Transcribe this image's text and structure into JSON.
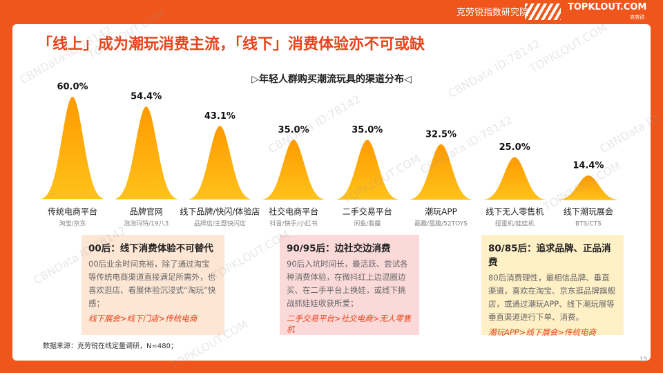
{
  "header": {
    "brand": "克劳锐指数研究院",
    "logo": "TOPKLOUT.COM",
    "logo_cn": "克劳锐",
    "title": "「线上」成为潮玩消费主流，「线下」消费体验亦不可或缺"
  },
  "chart_data": {
    "type": "bar",
    "title": "▷年轻人群购买潮流玩具的渠道分布◁",
    "categories": [
      "传统电商平台",
      "品牌官网",
      "线下品牌/快闪/体验店",
      "社交电商平台",
      "二手交易平台",
      "潮玩APP",
      "线下无人零售机",
      "线下潮玩展会"
    ],
    "sublabels": [
      "淘宝/京东",
      "泡泡玛特/19八3",
      "品牌店/主题快闪店",
      "抖音/快手/小红书",
      "闲鱼/看魔",
      "葩趣/蛋趣/52TOYS",
      "扭蛋机/娃娃机",
      "BTS/CTS"
    ],
    "values": [
      60.0,
      54.4,
      43.1,
      35.0,
      35.0,
      32.5,
      25.0,
      14.4
    ],
    "value_labels": [
      "60.0%",
      "54.4%",
      "43.1%",
      "35.0%",
      "35.0%",
      "32.5%",
      "25.0%",
      "14.4%"
    ],
    "ylim": [
      0,
      60
    ],
    "color_top": "#ff9a00",
    "color_bottom": "#ffc21a"
  },
  "cards": [
    {
      "title": "00后：线下消费体验不可替代",
      "body": "00后业余时间充裕，除了通过淘宝等传统电商渠道直接满足所需外，也喜欢逛店、看展体验沉浸式“淘玩”快感；",
      "path": "线下展会>线下门店>传统电商",
      "color": "#fde6d4"
    },
    {
      "title": "90/95后：边社交边消费",
      "body": "90后入坑时间长，最活跃、尝试各种消费体验，在微抖红上边混圈边买、在二手平台上换娃，或线下挑战抓娃娃收获所爱；",
      "path": "二手交易平台>社交电商>无人零售机",
      "color": "#fbd9d9"
    },
    {
      "title": "80/85后：追求品牌、正品消费",
      "body": "80后消费理性，最相信品牌、垂直渠道，喜欢在淘宝、京东逛品牌旗舰店，或通过潮玩APP、线下潮玩展等垂直渠道进行下单、消费。",
      "path": "潮玩APP>线下展会>传统电商",
      "color": "#fff0c6"
    }
  ],
  "footer": {
    "source": "数据来源：克劳锐在线定量调研，N=480；",
    "page": "15"
  },
  "watermark": {
    "a": "CBNData ID:78142",
    "b": "TOPKLOUT.COM"
  }
}
